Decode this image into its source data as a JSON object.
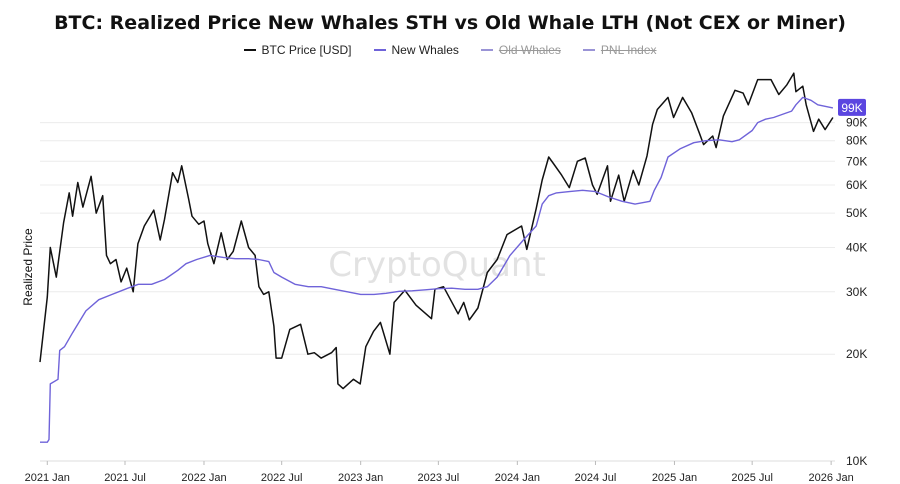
{
  "chart_data": {
    "type": "line",
    "title": "BTC: Realized Price New Whales STH vs Old Whale LTH (Not CEX or Miner)",
    "ylabel": "Realized Price",
    "y_scale": "log",
    "ylim": [
      10000,
      125000
    ],
    "xlim": [
      "2020-12-15",
      "2026-01-10"
    ],
    "x_tick_labels": [
      "2021 Jan",
      "2021 Jul",
      "2022 Jan",
      "2022 Jul",
      "2023 Jan",
      "2023 Jul",
      "2024 Jan",
      "2024 Jul",
      "2025 Jan",
      "2025 Jul",
      "2026 Jan"
    ],
    "x_tick_dates": [
      "2021-01-01",
      "2021-07-01",
      "2022-01-01",
      "2022-07-01",
      "2023-01-01",
      "2023-07-01",
      "2024-01-01",
      "2024-07-01",
      "2025-01-01",
      "2025-07-01",
      "2026-01-01"
    ],
    "y_ticks": [
      10000,
      20000,
      30000,
      40000,
      50000,
      60000,
      70000,
      80000,
      90000
    ],
    "y_tick_labels": [
      "10K",
      "20K",
      "30K",
      "40K",
      "50K",
      "60K",
      "70K",
      "80K",
      "90K"
    ],
    "current_value_label": "99K",
    "watermark": "CryptoQuant",
    "legend_position": "top-center",
    "grid": "horizontal",
    "series": [
      {
        "name": "BTC Price [USD]",
        "color": "#111111",
        "visible": true,
        "x": [
          "2020-12-15",
          "2021-01-01",
          "2021-01-08",
          "2021-01-22",
          "2021-02-08",
          "2021-02-21",
          "2021-03-01",
          "2021-03-13",
          "2021-03-25",
          "2021-04-13",
          "2021-04-25",
          "2021-05-10",
          "2021-05-19",
          "2021-05-28",
          "2021-06-10",
          "2021-06-22",
          "2021-07-05",
          "2021-07-20",
          "2021-07-31",
          "2021-08-15",
          "2021-09-06",
          "2021-09-21",
          "2021-10-01",
          "2021-10-20",
          "2021-11-01",
          "2021-11-10",
          "2021-11-26",
          "2021-12-04",
          "2021-12-20",
          "2022-01-01",
          "2022-01-10",
          "2022-01-24",
          "2022-02-10",
          "2022-02-24",
          "2022-03-10",
          "2022-03-29",
          "2022-04-15",
          "2022-04-30",
          "2022-05-09",
          "2022-05-20",
          "2022-06-01",
          "2022-06-13",
          "2022-06-18",
          "2022-07-01",
          "2022-07-20",
          "2022-08-14",
          "2022-08-31",
          "2022-09-15",
          "2022-10-01",
          "2022-10-25",
          "2022-11-05",
          "2022-11-09",
          "2022-11-21",
          "2022-12-15",
          "2022-12-31",
          "2023-01-13",
          "2023-01-31",
          "2023-02-16",
          "2023-03-10",
          "2023-03-20",
          "2023-04-14",
          "2023-05-10",
          "2023-06-15",
          "2023-06-23",
          "2023-07-13",
          "2023-08-16",
          "2023-08-29",
          "2023-09-11",
          "2023-10-01",
          "2023-10-23",
          "2023-11-15",
          "2023-12-08",
          "2024-01-11",
          "2024-01-23",
          "2024-02-14",
          "2024-02-28",
          "2024-03-14",
          "2024-03-25",
          "2024-04-13",
          "2024-05-01",
          "2024-05-20",
          "2024-06-07",
          "2024-06-24",
          "2024-07-05",
          "2024-07-29",
          "2024-08-05",
          "2024-08-24",
          "2024-09-06",
          "2024-09-27",
          "2024-10-10",
          "2024-10-29",
          "2024-11-11",
          "2024-11-22",
          "2024-12-17",
          "2024-12-30",
          "2025-01-20",
          "2025-02-10",
          "2025-02-28",
          "2025-03-10",
          "2025-03-31",
          "2025-04-08",
          "2025-04-25",
          "2025-05-22",
          "2025-06-10",
          "2025-06-22",
          "2025-07-14",
          "2025-08-14",
          "2025-09-01",
          "2025-09-20",
          "2025-10-06",
          "2025-10-11",
          "2025-10-27",
          "2025-11-04",
          "2025-11-21",
          "2025-12-03",
          "2025-12-18",
          "2026-01-05"
        ],
        "y": [
          19000,
          29000,
          40000,
          33000,
          47000,
          57000,
          49000,
          61000,
          52000,
          63500,
          50000,
          56000,
          38000,
          36000,
          37000,
          32000,
          35000,
          30000,
          41000,
          46000,
          51000,
          42000,
          48000,
          65000,
          61000,
          68000,
          55000,
          49000,
          46500,
          47500,
          41000,
          36000,
          44000,
          37000,
          39000,
          47500,
          40000,
          38000,
          31000,
          29500,
          30000,
          24000,
          19500,
          19500,
          23500,
          24300,
          20000,
          20200,
          19500,
          20200,
          20900,
          16500,
          16000,
          17000,
          16500,
          21000,
          23200,
          24600,
          20000,
          28000,
          30300,
          27500,
          25200,
          30500,
          31000,
          26000,
          28000,
          25000,
          27000,
          34000,
          37000,
          43500,
          46000,
          39500,
          51500,
          62000,
          72000,
          69000,
          64000,
          59000,
          70000,
          71500,
          60000,
          56500,
          68000,
          54000,
          64000,
          54000,
          66000,
          60000,
          72500,
          89000,
          98000,
          106000,
          93000,
          106000,
          96000,
          84000,
          78000,
          82500,
          76500,
          94000,
          111000,
          109000,
          101000,
          119000,
          119000,
          108000,
          115000,
          124000,
          110000,
          114000,
          101000,
          85000,
          92000,
          86000,
          93000
        ]
      },
      {
        "name": "New Whales",
        "color": "#6f63d9",
        "visible": true,
        "x": [
          "2020-12-15",
          "2021-01-01",
          "2021-01-05",
          "2021-01-08",
          "2021-01-26",
          "2021-01-30",
          "2021-02-10",
          "2021-03-01",
          "2021-04-01",
          "2021-05-01",
          "2021-06-01",
          "2021-07-01",
          "2021-08-01",
          "2021-09-01",
          "2021-10-01",
          "2021-11-01",
          "2021-11-20",
          "2021-12-15",
          "2022-01-15",
          "2022-02-15",
          "2022-03-15",
          "2022-04-15",
          "2022-05-08",
          "2022-06-01",
          "2022-06-13",
          "2022-07-01",
          "2022-08-01",
          "2022-09-01",
          "2022-10-01",
          "2022-11-01",
          "2022-12-01",
          "2023-01-01",
          "2023-02-01",
          "2023-03-01",
          "2023-04-01",
          "2023-05-01",
          "2023-06-01",
          "2023-07-01",
          "2023-08-01",
          "2023-09-01",
          "2023-10-01",
          "2023-10-23",
          "2023-11-15",
          "2023-12-15",
          "2024-01-15",
          "2024-02-14",
          "2024-02-28",
          "2024-03-14",
          "2024-04-01",
          "2024-05-01",
          "2024-06-01",
          "2024-07-01",
          "2024-08-01",
          "2024-09-01",
          "2024-10-01",
          "2024-11-05",
          "2024-11-15",
          "2024-12-01",
          "2024-12-17",
          "2025-01-15",
          "2025-02-15",
          "2025-03-15",
          "2025-04-15",
          "2025-05-15",
          "2025-06-01",
          "2025-07-01",
          "2025-07-14",
          "2025-08-01",
          "2025-08-20",
          "2025-09-15",
          "2025-10-01",
          "2025-10-11",
          "2025-10-27",
          "2025-11-15",
          "2025-12-01",
          "2026-01-05"
        ],
        "y": [
          11300,
          11300,
          11500,
          16500,
          17000,
          20500,
          21000,
          23000,
          26500,
          28500,
          29500,
          30500,
          31500,
          31500,
          32500,
          34500,
          36000,
          37000,
          38000,
          37500,
          37200,
          37200,
          37000,
          36500,
          34000,
          33000,
          31500,
          31000,
          31000,
          30500,
          30000,
          29500,
          29500,
          29700,
          30100,
          30200,
          30400,
          30600,
          30700,
          30500,
          30500,
          31000,
          33000,
          38000,
          42000,
          46000,
          53000,
          56000,
          57000,
          57500,
          58000,
          57500,
          55500,
          54000,
          53000,
          54000,
          58000,
          63000,
          72000,
          76000,
          79000,
          80000,
          80500,
          79500,
          80500,
          85500,
          90000,
          92000,
          93000,
          95500,
          97000,
          101000,
          106000,
          104000,
          101000,
          99000
        ]
      },
      {
        "name": "Old Whales",
        "color": "#6f63d9",
        "visible": false
      },
      {
        "name": "PNL Index",
        "color": "#8a86c4",
        "visible": false
      }
    ]
  }
}
